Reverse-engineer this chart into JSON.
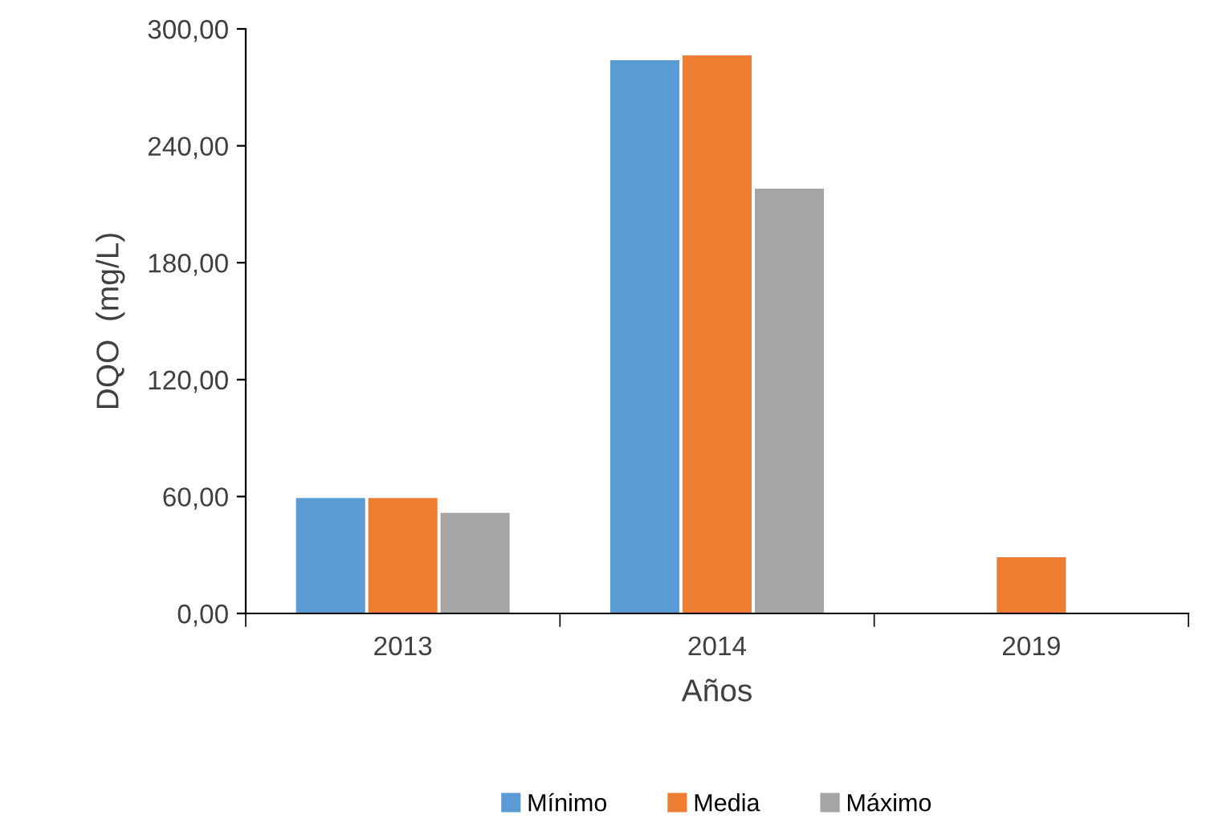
{
  "chart_data": {
    "type": "bar",
    "xlabel": "Años",
    "ylabel": "DQO  (mg/L)",
    "categories": [
      "2013",
      "2014",
      "2019"
    ],
    "series": [
      {
        "name": "Mínimo",
        "color": "#5b9bd5",
        "values": [
          59.2,
          283.9,
          null
        ]
      },
      {
        "name": "Media",
        "color": "#ed7d31",
        "values": [
          59.2,
          286.4,
          28.8
        ]
      },
      {
        "name": "Máximo",
        "color": "#a5a5a5",
        "values": [
          51.6,
          218.0,
          null
        ]
      }
    ],
    "ylim": [
      0,
      300
    ],
    "yticks": [
      {
        "value": 0,
        "label": "0,00"
      },
      {
        "value": 60,
        "label": "60,00"
      },
      {
        "value": 120,
        "label": "120,00"
      },
      {
        "value": 180,
        "label": "180,00"
      },
      {
        "value": 240,
        "label": "240,00"
      },
      {
        "value": 300,
        "label": "300,00"
      }
    ],
    "grid": false,
    "legend": "bottom"
  }
}
